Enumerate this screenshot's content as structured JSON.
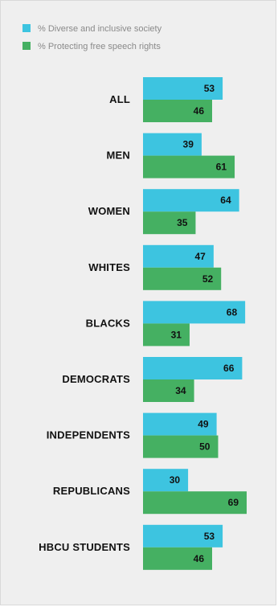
{
  "chart_data": {
    "type": "bar",
    "orientation": "horizontal",
    "categories": [
      "ALL",
      "MEN",
      "WOMEN",
      "WHITES",
      "BLACKS",
      "DEMOCRATS",
      "INDEPENDENTS",
      "REPUBLICANS",
      "HBCU STUDENTS"
    ],
    "series": [
      {
        "name": "% Diverse and inclusive society",
        "color": "#3dc4e0",
        "values": [
          53,
          39,
          64,
          47,
          68,
          66,
          49,
          30,
          53
        ]
      },
      {
        "name": "% Protecting free speech rights",
        "color": "#45b062",
        "values": [
          46,
          61,
          35,
          52,
          31,
          34,
          50,
          69,
          46
        ]
      }
    ],
    "title": "",
    "xlabel": "",
    "ylabel": "",
    "xlim": [
      0,
      100
    ],
    "legend_position": "top-left",
    "data_labels": "inside-end",
    "grid": false,
    "background": "#efefef"
  }
}
